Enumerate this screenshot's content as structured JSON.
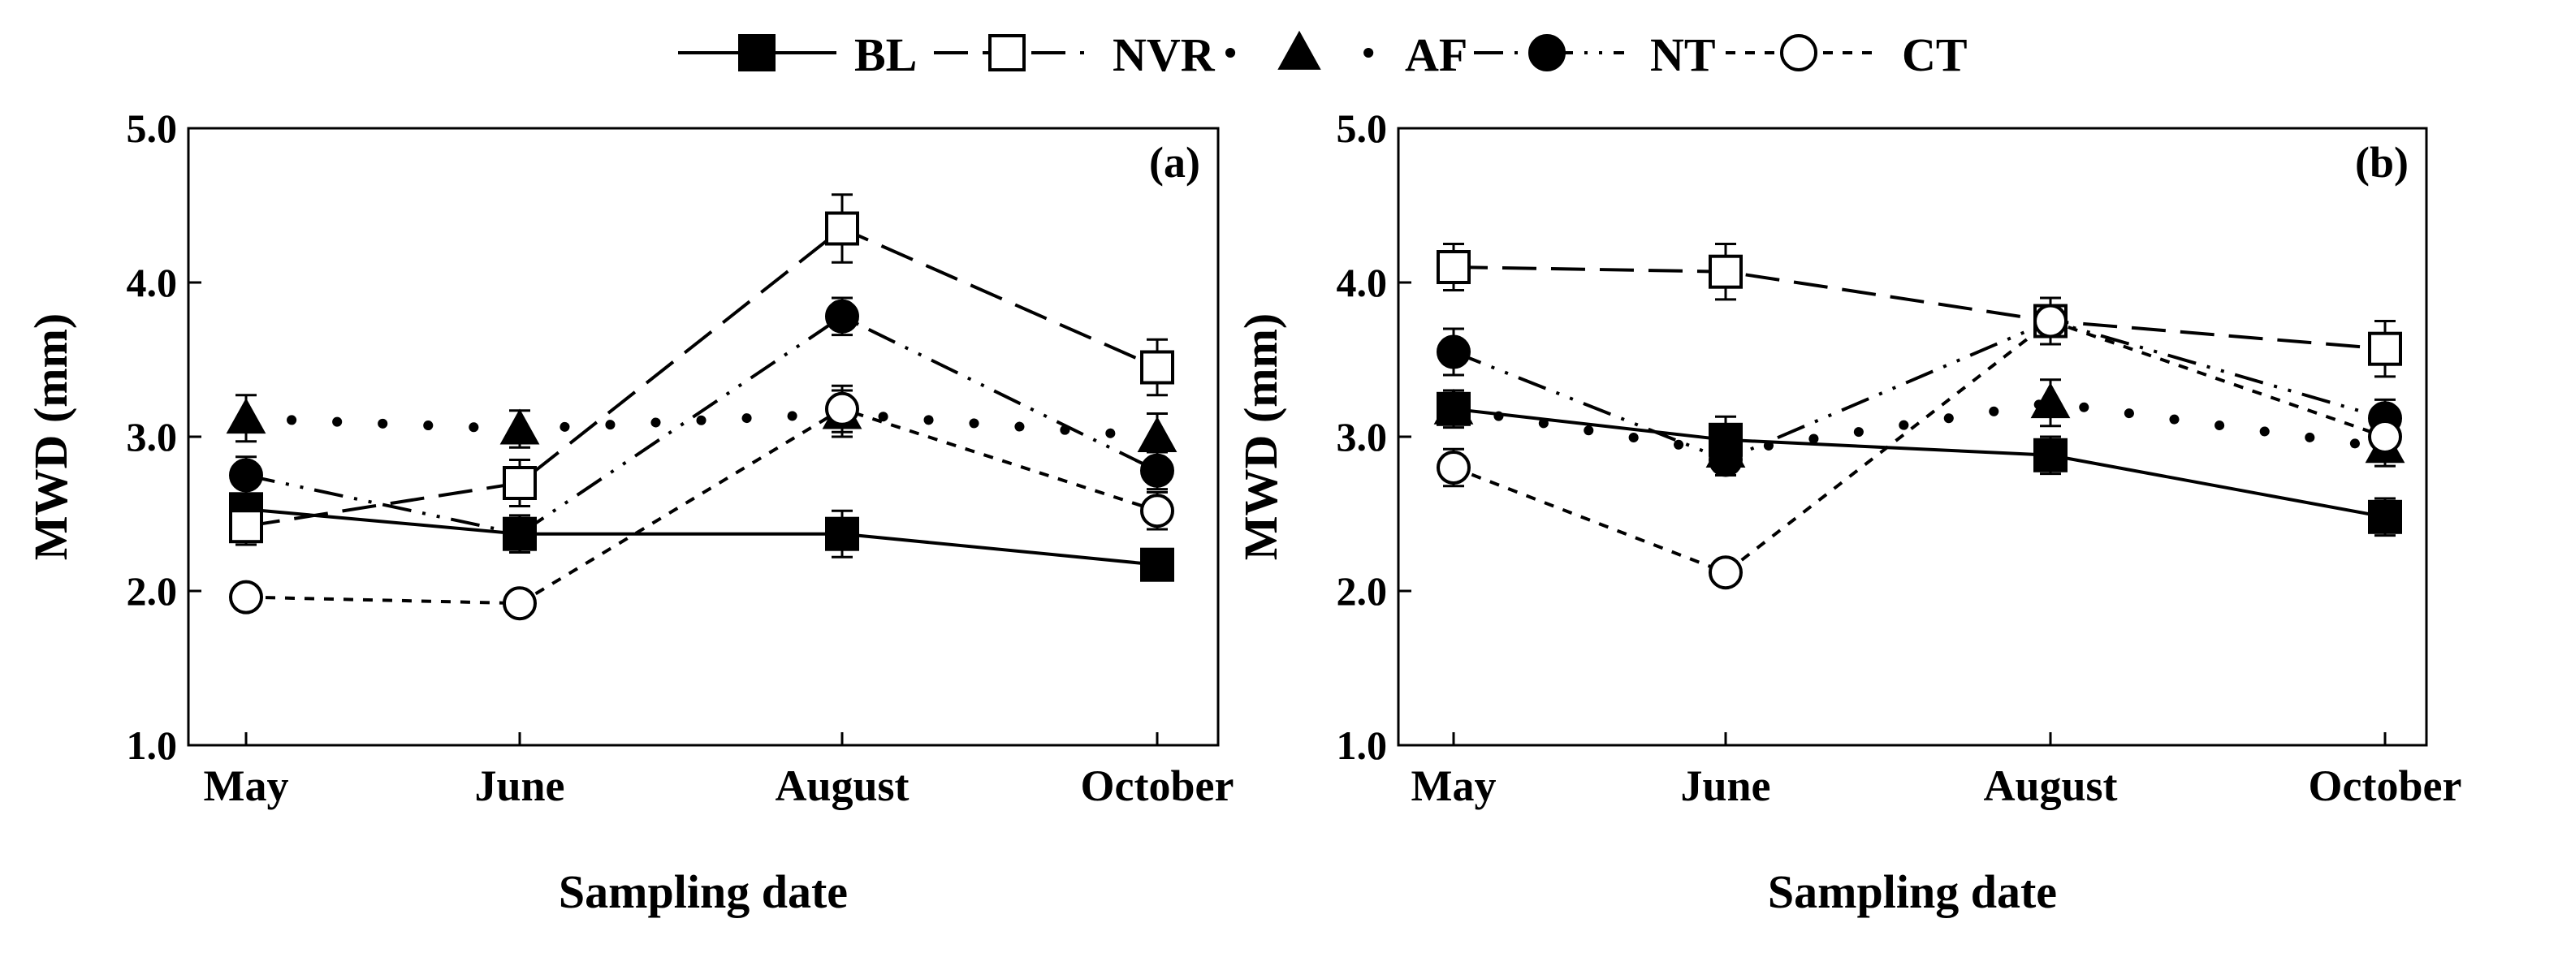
{
  "legend": {
    "entries": [
      {
        "key": "BL",
        "label": "BL"
      },
      {
        "key": "NVR",
        "label": "NVR"
      },
      {
        "key": "AF",
        "label": "AF"
      },
      {
        "key": "NT",
        "label": "NT"
      },
      {
        "key": "CT",
        "label": "CT"
      }
    ]
  },
  "colors": {
    "ink": "#000000",
    "open": "#ffffff"
  },
  "chart_data": [
    {
      "type": "line",
      "panel_label": "(a)",
      "title": "",
      "xlabel": "Sampling date",
      "ylabel": "MWD (mm)",
      "categories": [
        "May",
        "June",
        "August",
        "October"
      ],
      "ylim": [
        1.0,
        5.0
      ],
      "yticks": [
        "1.0",
        "2.0",
        "3.0",
        "4.0",
        "5.0"
      ],
      "series": [
        {
          "name": "BL",
          "values": [
            2.53,
            2.37,
            2.37,
            2.17
          ],
          "errors": [
            0.15,
            0.12,
            0.15,
            0.1
          ]
        },
        {
          "name": "NVR",
          "values": [
            2.42,
            2.7,
            4.35,
            3.45
          ],
          "errors": [
            0.12,
            0.15,
            0.22,
            0.18
          ]
        },
        {
          "name": "AF",
          "values": [
            3.12,
            3.05,
            3.15,
            3.0
          ],
          "errors": [
            0.15,
            0.12,
            0.15,
            0.15
          ]
        },
        {
          "name": "NT",
          "values": [
            2.75,
            2.37,
            3.78,
            2.78
          ],
          "errors": [
            0.12,
            0.1,
            0.12,
            0.12
          ]
        },
        {
          "name": "CT",
          "values": [
            1.96,
            1.92,
            3.18,
            2.52
          ],
          "errors": [
            0.05,
            0.05,
            0.15,
            0.12
          ]
        }
      ]
    },
    {
      "type": "line",
      "panel_label": "(b)",
      "title": "",
      "xlabel": "Sampling date",
      "ylabel": "MWD (mm)",
      "categories": [
        "May",
        "June",
        "August",
        "October"
      ],
      "ylim": [
        1.0,
        5.0
      ],
      "yticks": [
        "1.0",
        "2.0",
        "3.0",
        "4.0",
        "5.0"
      ],
      "series": [
        {
          "name": "BL",
          "values": [
            3.18,
            2.98,
            2.88,
            2.48
          ],
          "errors": [
            0.12,
            0.15,
            0.12,
            0.12
          ]
        },
        {
          "name": "NVR",
          "values": [
            4.1,
            4.07,
            3.75,
            3.57
          ],
          "errors": [
            0.15,
            0.18,
            0.15,
            0.18
          ]
        },
        {
          "name": "AF",
          "values": [
            3.18,
            2.9,
            3.22,
            2.93
          ],
          "errors": [
            0.1,
            0.1,
            0.15,
            0.12
          ]
        },
        {
          "name": "NT",
          "values": [
            3.55,
            2.85,
            3.75,
            3.12
          ],
          "errors": [
            0.15,
            0.1,
            0.15,
            0.12
          ]
        },
        {
          "name": "CT",
          "values": [
            2.8,
            2.12,
            3.75,
            3.0
          ],
          "errors": [
            0.12,
            0.05,
            0.15,
            0.1
          ]
        }
      ]
    }
  ]
}
